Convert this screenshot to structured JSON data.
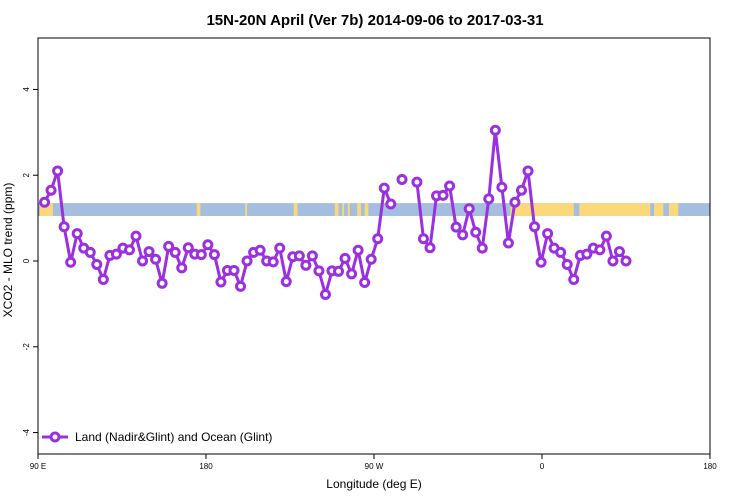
{
  "chart_data": {
    "type": "line",
    "title": "15N-20N April (Ver 7b)   2014-09-06 to 2017-03-31",
    "xlabel": "Longitude (deg E)",
    "ylabel": "XCO2 - MLO trend (ppm)",
    "xlim": [
      90,
      450
    ],
    "ylim": [
      -4.5,
      5.2
    ],
    "x_ticks": [
      {
        "value": 90,
        "label": "90 E"
      },
      {
        "value": 180,
        "label": "180"
      },
      {
        "value": 270,
        "label": "90 W"
      },
      {
        "value": 360,
        "label": "0"
      },
      {
        "value": 450,
        "label": "180"
      }
    ],
    "y_ticks": [
      {
        "value": -4,
        "label": "-4"
      },
      {
        "value": -2,
        "label": "-2"
      },
      {
        "value": 0,
        "label": "0"
      },
      {
        "value": 2,
        "label": "2"
      },
      {
        "value": 4,
        "label": "4"
      }
    ],
    "grid": false,
    "legend_position": "bottom-left",
    "band": {
      "y_low": 1.05,
      "y_high": 1.35,
      "ocean_color": "#a5bddf",
      "land_color": "#fbd97a"
    },
    "land_segments": [
      [
        91,
        98
      ],
      [
        175,
        177
      ],
      [
        201,
        202
      ],
      [
        227,
        229
      ],
      [
        249,
        251
      ],
      [
        253,
        254
      ],
      [
        256,
        257
      ],
      [
        261,
        263
      ],
      [
        265,
        267
      ],
      [
        343,
        377
      ],
      [
        380,
        418
      ],
      [
        420,
        425
      ],
      [
        428,
        433
      ]
    ],
    "series": [
      {
        "name": "Land (Nadir&Glint) and Ocean (Glint)",
        "color": "#9b30e0",
        "points": [
          [
            93.5,
            1.37
          ],
          [
            97,
            1.65
          ],
          [
            100.5,
            2.1
          ],
          [
            104,
            0.8
          ],
          [
            107.5,
            -0.03
          ],
          [
            111,
            0.64
          ],
          [
            114.5,
            0.3
          ],
          [
            118,
            0.2
          ],
          [
            121.5,
            -0.08
          ],
          [
            125,
            -0.43
          ],
          [
            128.5,
            0.13
          ],
          [
            132,
            0.16
          ],
          [
            135.5,
            0.3
          ],
          [
            139,
            0.26
          ],
          [
            142.5,
            0.58
          ],
          [
            146,
            0.0
          ],
          [
            149.5,
            0.22
          ],
          [
            153,
            0.04
          ],
          [
            156.5,
            -0.52
          ],
          [
            160,
            0.34
          ],
          [
            163.5,
            0.2
          ],
          [
            167,
            -0.16
          ],
          [
            170.5,
            0.31
          ],
          [
            174,
            0.16
          ],
          [
            177.5,
            0.15
          ],
          [
            181,
            0.38
          ],
          [
            184.5,
            0.15
          ],
          [
            188,
            -0.49
          ],
          [
            191.5,
            -0.22
          ],
          [
            195,
            -0.22
          ],
          [
            198.5,
            -0.59
          ],
          [
            202,
            0.0
          ],
          [
            205.5,
            0.2
          ],
          [
            209,
            0.25
          ],
          [
            212.5,
            0.0
          ],
          [
            216,
            -0.02
          ],
          [
            219.5,
            0.3
          ],
          [
            223,
            -0.48
          ],
          [
            226.5,
            0.1
          ],
          [
            230,
            0.12
          ],
          [
            233.5,
            -0.1
          ],
          [
            237,
            0.12
          ],
          [
            240.5,
            -0.23
          ],
          [
            244,
            -0.78
          ],
          [
            247.5,
            -0.23
          ],
          [
            251,
            -0.24
          ],
          [
            254.5,
            0.06
          ],
          [
            258,
            -0.3
          ],
          [
            261.5,
            0.25
          ],
          [
            265,
            -0.5
          ],
          [
            268.5,
            0.04
          ],
          [
            272,
            0.52
          ],
          [
            275.5,
            1.7
          ],
          [
            279,
            1.33
          ],
          [
            285,
            1.9
          ],
          [
            293,
            1.84
          ],
          [
            296.5,
            0.52
          ],
          [
            300,
            0.31
          ],
          [
            303.5,
            1.52
          ],
          [
            307,
            1.53
          ],
          [
            310.5,
            1.75
          ],
          [
            314,
            0.79
          ],
          [
            317.5,
            0.61
          ],
          [
            321,
            1.22
          ],
          [
            324.5,
            0.67
          ],
          [
            328,
            0.3
          ],
          [
            331.5,
            1.45
          ],
          [
            335,
            3.05
          ],
          [
            338.5,
            1.72
          ],
          [
            342,
            0.42
          ],
          [
            345.5,
            1.37
          ],
          [
            349,
            1.65
          ],
          [
            352.5,
            2.1
          ],
          [
            356,
            0.8
          ],
          [
            359.5,
            -0.03
          ],
          [
            363,
            0.64
          ],
          [
            366.5,
            0.3
          ],
          [
            370,
            0.2
          ],
          [
            373.5,
            -0.08
          ],
          [
            377,
            -0.43
          ],
          [
            380.5,
            0.13
          ],
          [
            384,
            0.16
          ],
          [
            387.5,
            0.3
          ],
          [
            391,
            0.26
          ],
          [
            394.5,
            0.58
          ],
          [
            398,
            0.0
          ],
          [
            401.5,
            0.22
          ],
          [
            405,
            0.0
          ]
        ],
        "breaks_after_x": [
          279,
          285
        ]
      }
    ]
  }
}
